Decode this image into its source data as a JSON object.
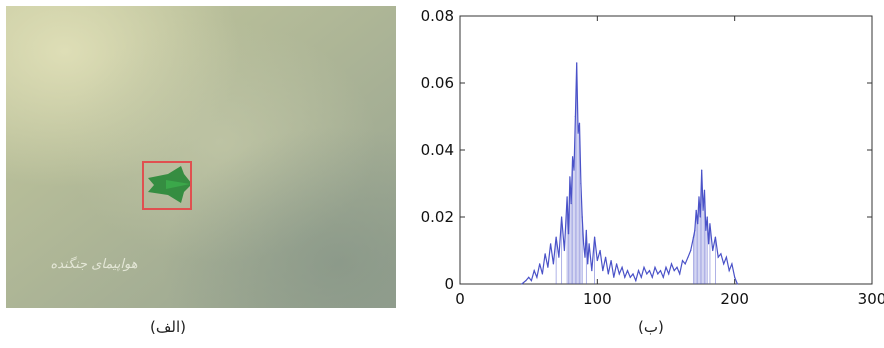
{
  "panels": {
    "left": {
      "caption": "(الف)",
      "overlay_text": "هواپیمای جنگنده"
    },
    "right": {
      "caption": "(ب)"
    }
  },
  "colors": {
    "line": "#4a52c8",
    "box": "#e05050",
    "plane": "#2e8a3c",
    "sky_light": "#c9cda8",
    "sky_dark": "#8e9c86"
  },
  "chart_data": {
    "type": "line",
    "title": "",
    "xlabel": "",
    "ylabel": "",
    "xlim": [
      0,
      300
    ],
    "ylim": [
      0,
      0.08
    ],
    "xticks": [
      0,
      100,
      200,
      300
    ],
    "yticks": [
      0,
      0.02,
      0.04,
      0.06,
      0.08
    ],
    "xtick_labels": [
      "0",
      "100",
      "200",
      "300"
    ],
    "ytick_labels": [
      "0",
      "0.02",
      "0.04",
      "0.06",
      "0.08"
    ],
    "series": [
      {
        "x": [
          45,
          48,
          50,
          52,
          54,
          56,
          58,
          60,
          62,
          64,
          66,
          68,
          70,
          72,
          74,
          76,
          78,
          79,
          80,
          81,
          82,
          83,
          84,
          85,
          86,
          87,
          88,
          89,
          90,
          91,
          92,
          93,
          94,
          96,
          98,
          100,
          102,
          104,
          106,
          108,
          110,
          112,
          114,
          116,
          118,
          120,
          122,
          124,
          126,
          128,
          130,
          132,
          134,
          136,
          138,
          140,
          142,
          144,
          146,
          148,
          150,
          152,
          154,
          156,
          158,
          160,
          162,
          164,
          166,
          168,
          170,
          171,
          172,
          173,
          174,
          175,
          176,
          177,
          178,
          179,
          180,
          181,
          182,
          184,
          186,
          188,
          190,
          192,
          194,
          196,
          198,
          200,
          202
        ],
        "values": [
          0,
          0.001,
          0.002,
          0.001,
          0.004,
          0.002,
          0.006,
          0.003,
          0.009,
          0.005,
          0.012,
          0.006,
          0.014,
          0.008,
          0.02,
          0.01,
          0.026,
          0.015,
          0.032,
          0.024,
          0.038,
          0.034,
          0.05,
          0.066,
          0.045,
          0.048,
          0.03,
          0.02,
          0.012,
          0.008,
          0.016,
          0.006,
          0.012,
          0.004,
          0.014,
          0.007,
          0.01,
          0.004,
          0.008,
          0.003,
          0.007,
          0.002,
          0.006,
          0.003,
          0.005,
          0.002,
          0.004,
          0.002,
          0.003,
          0.001,
          0.004,
          0.002,
          0.005,
          0.003,
          0.004,
          0.002,
          0.005,
          0.003,
          0.004,
          0.002,
          0.005,
          0.003,
          0.006,
          0.004,
          0.005,
          0.003,
          0.007,
          0.006,
          0.008,
          0.01,
          0.014,
          0.016,
          0.022,
          0.018,
          0.026,
          0.02,
          0.034,
          0.022,
          0.028,
          0.016,
          0.02,
          0.012,
          0.018,
          0.01,
          0.014,
          0.008,
          0.009,
          0.006,
          0.008,
          0.004,
          0.006,
          0.002,
          0
        ]
      }
    ]
  }
}
